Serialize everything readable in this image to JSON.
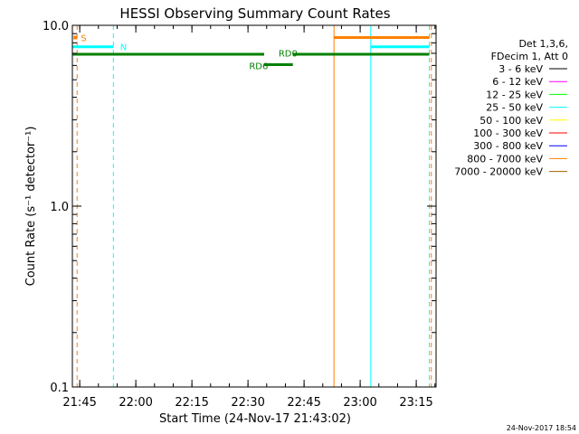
{
  "chart_data": {
    "type": "line",
    "title": "HESSI Observing Summary Count Rates",
    "xlabel": "Start Time (24-Nov-17 21:43:02)",
    "ylabel": "Count Rate (s⁻¹ detector⁻¹)",
    "yscale": "log",
    "ylim": [
      0.1,
      10.0
    ],
    "xlim": [
      21.7172,
      23.3383
    ],
    "x_unit": "hours since 00:00 UT, 24-Nov-17",
    "x_ticks": [
      {
        "value": 21.75,
        "label": "21:45"
      },
      {
        "value": 22.0,
        "label": "22:00"
      },
      {
        "value": 22.25,
        "label": "22:15"
      },
      {
        "value": 22.5,
        "label": "22:30"
      },
      {
        "value": 22.75,
        "label": "22:45"
      },
      {
        "value": 23.0,
        "label": "23:00"
      },
      {
        "value": 23.25,
        "label": "23:15"
      }
    ],
    "y_ticks": [
      {
        "value": 0.1,
        "label": "0.1"
      },
      {
        "value": 1.0,
        "label": "1.0"
      },
      {
        "value": 10.0,
        "label": "10.0"
      }
    ],
    "legend": {
      "position": "right",
      "header": [
        "Det 1,3,6,",
        "FDecim 1, Att 0"
      ],
      "entries": [
        {
          "label": "3 - 6 keV",
          "color": "#000000"
        },
        {
          "label": "6 - 12 keV",
          "color": "#ff00ff"
        },
        {
          "label": "12 - 25 keV",
          "color": "#00ff00"
        },
        {
          "label": "25 - 50 keV",
          "color": "#00ffff"
        },
        {
          "label": "50 - 100 keV",
          "color": "#ffff00"
        },
        {
          "label": "100 - 300 keV",
          "color": "#ff0000"
        },
        {
          "label": "300 - 800 keV",
          "color": "#0000ff"
        },
        {
          "label": "800 - 7000 keV",
          "color": "#ff8000"
        },
        {
          "label": "7000 - 20000 keV",
          "color": "#a06000"
        }
      ]
    },
    "series": [
      {
        "name": "RD0",
        "color": "#008000",
        "segments": [
          [
            21.7172,
            22.5722,
            6.92
          ],
          [
            22.7,
            23.3083,
            6.92
          ]
        ]
      },
      {
        "name": "RD6",
        "color": "#008000",
        "segments": [
          [
            22.5722,
            22.7,
            6.06
          ]
        ]
      },
      {
        "name": "N",
        "color": "#00ffff",
        "segments": [
          [
            21.7172,
            21.9,
            7.61
          ],
          [
            23.0472,
            23.3083,
            7.61
          ]
        ]
      },
      {
        "name": "S",
        "color": "#ff8000",
        "segments": [
          [
            22.8833,
            23.3083,
            8.56
          ]
        ]
      }
    ],
    "s_marker": {
      "x": 21.7305,
      "y": 8.56,
      "color": "#ff8000"
    },
    "series_labels": [
      {
        "text": "S",
        "x": 21.755,
        "y": 8.56,
        "color": "#ff8000"
      },
      {
        "text": "N",
        "x": 21.93,
        "y": 7.61,
        "color": "#00ffff"
      },
      {
        "text": "RD0",
        "x": 22.636,
        "y": 7.04,
        "color": "#008000"
      },
      {
        "text": "RD6",
        "x": 22.505,
        "y": 6.0,
        "color": "#008000"
      }
    ],
    "vertical_lines": [
      {
        "x": 21.7172,
        "color": "#00ffff",
        "style": "solid"
      },
      {
        "x": 21.7383,
        "color": "#ff8000",
        "style": "dashed"
      },
      {
        "x": 21.9,
        "color": "#00ffff",
        "style": "dashed"
      },
      {
        "x": 22.8833,
        "color": "#ff8000",
        "style": "solid"
      },
      {
        "x": 23.0472,
        "color": "#00ffff",
        "style": "solid"
      },
      {
        "x": 23.3083,
        "color": "#00ffff",
        "style": "dashed"
      },
      {
        "x": 23.3172,
        "color": "#ff8000",
        "style": "dashed"
      }
    ],
    "footer_timestamp": "24-Nov-2017 18:54"
  }
}
